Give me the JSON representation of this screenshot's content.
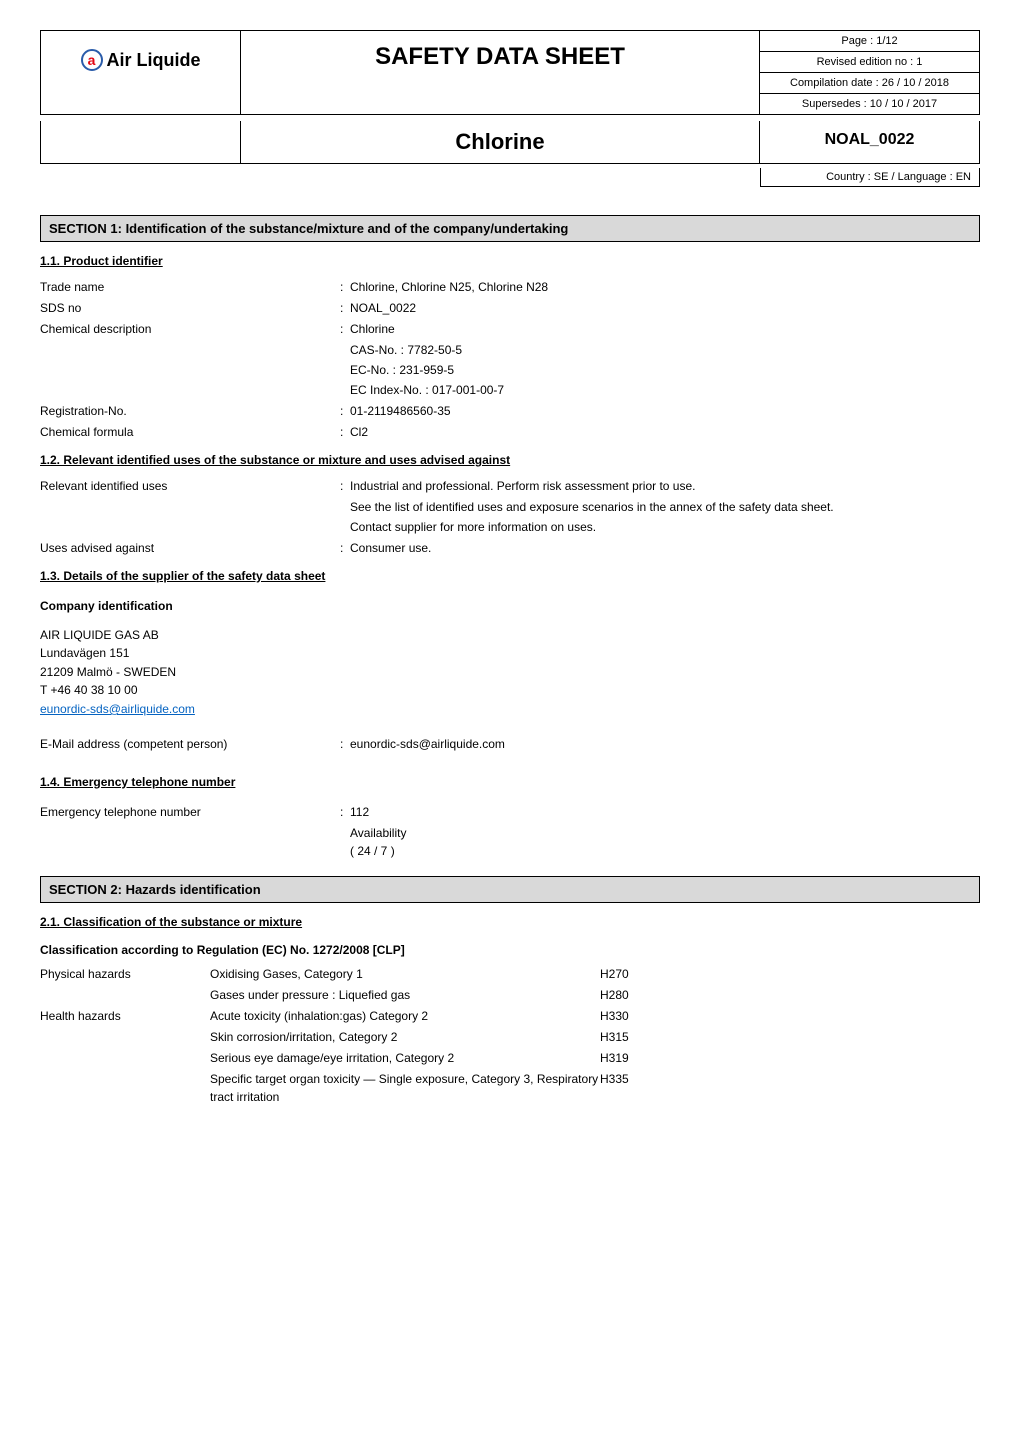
{
  "header": {
    "logo_text": "Air Liquide",
    "logo_mark": "a",
    "title": "SAFETY DATA SHEET",
    "meta": {
      "page": "Page : 1/12",
      "revised": "Revised edition no : 1",
      "compilation": "Compilation date : 26 / 10 / 2018",
      "supersedes": "Supersedes : 10 / 10 / 2017"
    },
    "product_name": "Chlorine",
    "noal": "NOAL_0022",
    "country": "Country : SE / Language : EN"
  },
  "section1": {
    "bar": "SECTION 1: Identification of the substance/mixture and of the company/undertaking",
    "s11_head": "1.1. Product identifier",
    "trade_name_k": "Trade name",
    "trade_name_v": "Chlorine, Chlorine N25, Chlorine N28",
    "sds_no_k": "SDS no",
    "sds_no_v": "NOAL_0022",
    "chem_desc_k": "Chemical description",
    "chem_desc_v": "Chlorine",
    "cas": "CAS-No. : 7782-50-5",
    "ec": "EC-No. : 231-959-5",
    "ec_index": "EC Index-No. : 017-001-00-7",
    "reg_no_k": "Registration-No.",
    "reg_no_v": "01-2119486560-35",
    "formula_k": "Chemical formula",
    "formula_v": "Cl2",
    "s12_head": "1.2. Relevant identified uses of the substance or mixture and uses advised against",
    "rel_uses_k": "Relevant identified uses",
    "rel_uses_v": "Industrial and professional. Perform risk assessment prior to use.",
    "rel_uses_l2": "See the list of identified uses and exposure scenarios in the annex of the safety data sheet.",
    "rel_uses_l3": "Contact supplier for more information on uses.",
    "adv_against_k": "Uses advised against",
    "adv_against_v": "Consumer use.",
    "s13_head": "1.3. Details of the supplier of the safety data sheet",
    "company_head": "Company identification",
    "company_lines": {
      "l1": "AIR LIQUIDE GAS AB",
      "l2": "Lundavägen 151",
      "l3": "21209 Malmö - SWEDEN",
      "l4": "T +46 40 38 10 00",
      "email_link": "eunordic-sds@airliquide.com"
    },
    "email_k": "E-Mail address (competent person)",
    "email_v": "eunordic-sds@airliquide.com",
    "s14_head": "1.4. Emergency telephone number",
    "emerg_k": "Emergency telephone number",
    "emerg_v": "112",
    "avail_label": "Availability",
    "avail_val": "( 24 / 7 )"
  },
  "section2": {
    "bar": "SECTION 2: Hazards identification",
    "s21_head": "2.1. Classification of the substance or mixture",
    "class_head": "Classification according to Regulation (EC) No. 1272/2008 [CLP]",
    "rows": [
      {
        "cat": "Physical hazards",
        "desc": "Oxidising Gases, Category 1",
        "code": "H270"
      },
      {
        "cat": "",
        "desc": "Gases under pressure : Liquefied gas",
        "code": "H280"
      },
      {
        "cat": "Health hazards",
        "desc": "Acute toxicity (inhalation:gas) Category 2",
        "code": "H330"
      },
      {
        "cat": "",
        "desc": "Skin corrosion/irritation, Category 2",
        "code": "H315"
      },
      {
        "cat": "",
        "desc": "Serious eye damage/eye irritation, Category 2",
        "code": "H319"
      },
      {
        "cat": "",
        "desc": "Specific target organ toxicity — Single exposure, Category 3, Respiratory tract irritation",
        "code": "H335"
      }
    ]
  }
}
